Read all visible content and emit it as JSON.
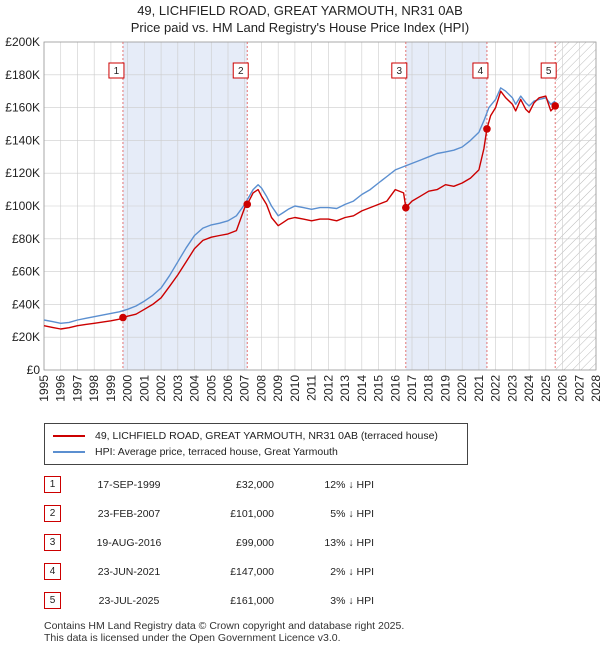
{
  "header": {
    "title": "49, LICHFIELD ROAD, GREAT YARMOUTH, NR31 0AB",
    "subtitle": "Price paid vs. HM Land Registry's House Price Index (HPI)"
  },
  "chart_data": {
    "type": "line",
    "title": "49, LICHFIELD ROAD, GREAT YARMOUTH, NR31 0AB",
    "subtitle": "Price paid vs. HM Land Registry's House Price Index (HPI)",
    "ylim": [
      0,
      200000
    ],
    "xlim": [
      1995,
      2028
    ],
    "yticks": [
      0,
      20000,
      40000,
      60000,
      80000,
      100000,
      120000,
      140000,
      160000,
      180000,
      200000
    ],
    "ytick_labels": [
      "£0",
      "£20K",
      "£40K",
      "£60K",
      "£80K",
      "£100K",
      "£120K",
      "£140K",
      "£160K",
      "£180K",
      "£200K"
    ],
    "xticks": [
      1995,
      1996,
      1997,
      1998,
      1999,
      2000,
      2001,
      2002,
      2003,
      2004,
      2005,
      2006,
      2007,
      2008,
      2009,
      2010,
      2011,
      2012,
      2013,
      2014,
      2015,
      2016,
      2017,
      2018,
      2019,
      2020,
      2021,
      2022,
      2023,
      2024,
      2025,
      2026,
      2027,
      2028
    ],
    "series": [
      {
        "name": "49, LICHFIELD ROAD, GREAT YARMOUTH, NR31 0AB (terraced house)",
        "color": "#cc0000",
        "x": [
          1995.0,
          1995.5,
          1996.0,
          1996.5,
          1997.0,
          1997.5,
          1998.0,
          1998.5,
          1999.0,
          1999.5,
          1999.72,
          2000.0,
          2000.5,
          2001.0,
          2001.5,
          2002.0,
          2002.5,
          2003.0,
          2003.5,
          2004.0,
          2004.5,
          2005.0,
          2005.5,
          2006.0,
          2006.5,
          2007.0,
          2007.15,
          2007.5,
          2007.8,
          2008.0,
          2008.3,
          2008.6,
          2009.0,
          2009.3,
          2009.6,
          2010.0,
          2010.5,
          2011.0,
          2011.5,
          2012.0,
          2012.5,
          2013.0,
          2013.5,
          2014.0,
          2014.5,
          2015.0,
          2015.5,
          2016.0,
          2016.5,
          2016.63,
          2017.0,
          2017.5,
          2018.0,
          2018.5,
          2019.0,
          2019.5,
          2020.0,
          2020.5,
          2021.0,
          2021.3,
          2021.48,
          2021.7,
          2022.0,
          2022.3,
          2022.6,
          2023.0,
          2023.2,
          2023.5,
          2023.8,
          2024.0,
          2024.3,
          2024.6,
          2025.0,
          2025.3,
          2025.56
        ],
        "values": [
          27000,
          26000,
          25000,
          25800,
          27000,
          27800,
          28500,
          29200,
          30000,
          31000,
          32000,
          32800,
          34000,
          37000,
          40000,
          44000,
          51000,
          58000,
          66000,
          74000,
          79000,
          81000,
          82000,
          83000,
          85000,
          99000,
          101000,
          108000,
          110000,
          106000,
          101000,
          93000,
          88000,
          90000,
          92000,
          93000,
          92000,
          91000,
          92000,
          92000,
          91000,
          93000,
          94000,
          97000,
          99000,
          101000,
          103000,
          110000,
          108000,
          99000,
          103000,
          106000,
          109000,
          110000,
          113000,
          112000,
          114000,
          117000,
          122000,
          135000,
          147000,
          155000,
          160000,
          170000,
          166000,
          162000,
          158000,
          165000,
          159000,
          157000,
          163000,
          166000,
          167000,
          158000,
          161000
        ]
      },
      {
        "name": "HPI: Average price, terraced house, Great Yarmouth",
        "color": "#5b8fd0",
        "x": [
          1995.0,
          1995.5,
          1996.0,
          1996.5,
          1997.0,
          1997.5,
          1998.0,
          1998.5,
          1999.0,
          1999.5,
          2000.0,
          2000.5,
          2001.0,
          2001.5,
          2002.0,
          2002.5,
          2003.0,
          2003.5,
          2004.0,
          2004.5,
          2005.0,
          2005.5,
          2006.0,
          2006.5,
          2007.0,
          2007.5,
          2007.8,
          2008.0,
          2008.3,
          2008.6,
          2009.0,
          2009.3,
          2009.6,
          2010.0,
          2010.5,
          2011.0,
          2011.5,
          2012.0,
          2012.5,
          2013.0,
          2013.5,
          2014.0,
          2014.5,
          2015.0,
          2015.5,
          2016.0,
          2016.5,
          2017.0,
          2017.5,
          2018.0,
          2018.5,
          2019.0,
          2019.5,
          2020.0,
          2020.5,
          2021.0,
          2021.3,
          2021.6,
          2022.0,
          2022.3,
          2022.6,
          2023.0,
          2023.2,
          2023.5,
          2023.8,
          2024.0,
          2024.3,
          2024.6,
          2025.0,
          2025.3,
          2025.56
        ],
        "values": [
          30500,
          29500,
          28500,
          29000,
          30500,
          31500,
          32500,
          33500,
          34500,
          35500,
          37000,
          39000,
          42000,
          45500,
          50000,
          57500,
          66000,
          74500,
          82000,
          86500,
          88500,
          89500,
          91000,
          94000,
          101000,
          110000,
          113000,
          111000,
          106000,
          100000,
          94000,
          96000,
          98000,
          100000,
          99000,
          98000,
          99000,
          99000,
          98500,
          101000,
          103000,
          107000,
          110000,
          114000,
          118000,
          122000,
          124000,
          126000,
          128000,
          130000,
          132000,
          133000,
          134000,
          136000,
          140000,
          145000,
          152000,
          160000,
          165000,
          172000,
          170000,
          166000,
          162000,
          167000,
          163000,
          161000,
          164000,
          165000,
          166000,
          162000,
          164000
        ]
      }
    ],
    "sales": [
      {
        "id": "1",
        "x": 1999.72,
        "value": 32000
      },
      {
        "id": "2",
        "x": 2007.15,
        "value": 101000
      },
      {
        "id": "3",
        "x": 2016.63,
        "value": 99000
      },
      {
        "id": "4",
        "x": 2021.48,
        "value": 147000
      },
      {
        "id": "5",
        "x": 2025.56,
        "value": 161000
      }
    ],
    "shaded_periods": [
      [
        1999.72,
        2007.15
      ],
      [
        2016.63,
        2021.48
      ]
    ],
    "forecast_from": 2025.56,
    "colors": {
      "sale": "#cc0000",
      "hpi": "#5b8fd0",
      "shade": "#e6ecf8",
      "grid": "#cccccc"
    }
  },
  "legend": {
    "items": [
      {
        "label": "49, LICHFIELD ROAD, GREAT YARMOUTH, NR31 0AB (terraced house)",
        "color": "#cc0000"
      },
      {
        "label": "HPI: Average price, terraced house, Great Yarmouth",
        "color": "#5b8fd0"
      }
    ]
  },
  "transactions": [
    {
      "num": "1",
      "date": "17-SEP-1999",
      "price": "£32,000",
      "hpi": "12% ↓ HPI"
    },
    {
      "num": "2",
      "date": "23-FEB-2007",
      "price": "£101,000",
      "hpi": "5% ↓ HPI"
    },
    {
      "num": "3",
      "date": "19-AUG-2016",
      "price": "£99,000",
      "hpi": "13% ↓ HPI"
    },
    {
      "num": "4",
      "date": "23-JUN-2021",
      "price": "£147,000",
      "hpi": "2% ↓ HPI"
    },
    {
      "num": "5",
      "date": "23-JUL-2025",
      "price": "£161,000",
      "hpi": "3% ↓ HPI"
    }
  ],
  "footer": {
    "line1": "Contains HM Land Registry data © Crown copyright and database right 2025.",
    "line2": "This data is licensed under the Open Government Licence v3.0."
  }
}
